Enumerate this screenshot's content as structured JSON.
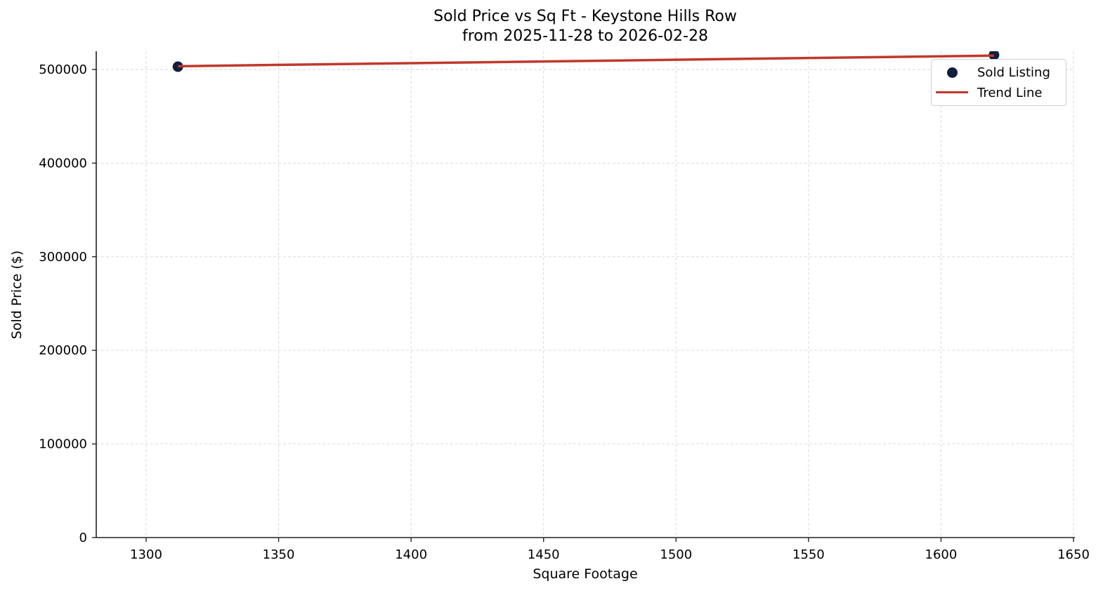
{
  "chart_data": {
    "type": "scatter",
    "title": "Sold Price vs Sq Ft - Keystone Hills Row",
    "subtitle": "from 2025-11-28 to 2026-02-28",
    "xlabel": "Square Footage",
    "ylabel": "Sold Price ($)",
    "xlim": [
      1281,
      1651
    ],
    "ylim": [
      0,
      519500
    ],
    "x_ticks": [
      1300,
      1350,
      1400,
      1450,
      1500,
      1550,
      1600,
      1650
    ],
    "y_ticks": [
      0,
      100000,
      200000,
      300000,
      400000,
      500000
    ],
    "grid": true,
    "legend_position": "upper right",
    "series": [
      {
        "name": "Sold Listing",
        "kind": "scatter",
        "color": "#0d1f3c",
        "points": [
          {
            "x": 1312,
            "y": 503000
          },
          {
            "x": 1620,
            "y": 515500
          }
        ]
      },
      {
        "name": "Trend Line",
        "kind": "line",
        "color": "#c0392b",
        "points": [
          {
            "x": 1312,
            "y": 503500
          },
          {
            "x": 1620,
            "y": 514800
          }
        ]
      }
    ]
  },
  "title_line1": "Sold Price vs Sq Ft - Keystone Hills Row",
  "title_line2": "from 2025-11-28 to 2026-02-28",
  "axes": {
    "xlabel": "Square Footage",
    "ylabel": "Sold Price ($)",
    "x_tick_labels": [
      "1300",
      "1350",
      "1400",
      "1450",
      "1500",
      "1550",
      "1600",
      "1650"
    ],
    "y_tick_labels": [
      "0",
      "100000",
      "200000",
      "300000",
      "400000",
      "500000"
    ]
  },
  "legend": {
    "items": [
      {
        "label": "Sold Listing",
        "color": "#0d1f3c"
      },
      {
        "label": "Trend Line",
        "color": "#c0392b"
      }
    ]
  }
}
